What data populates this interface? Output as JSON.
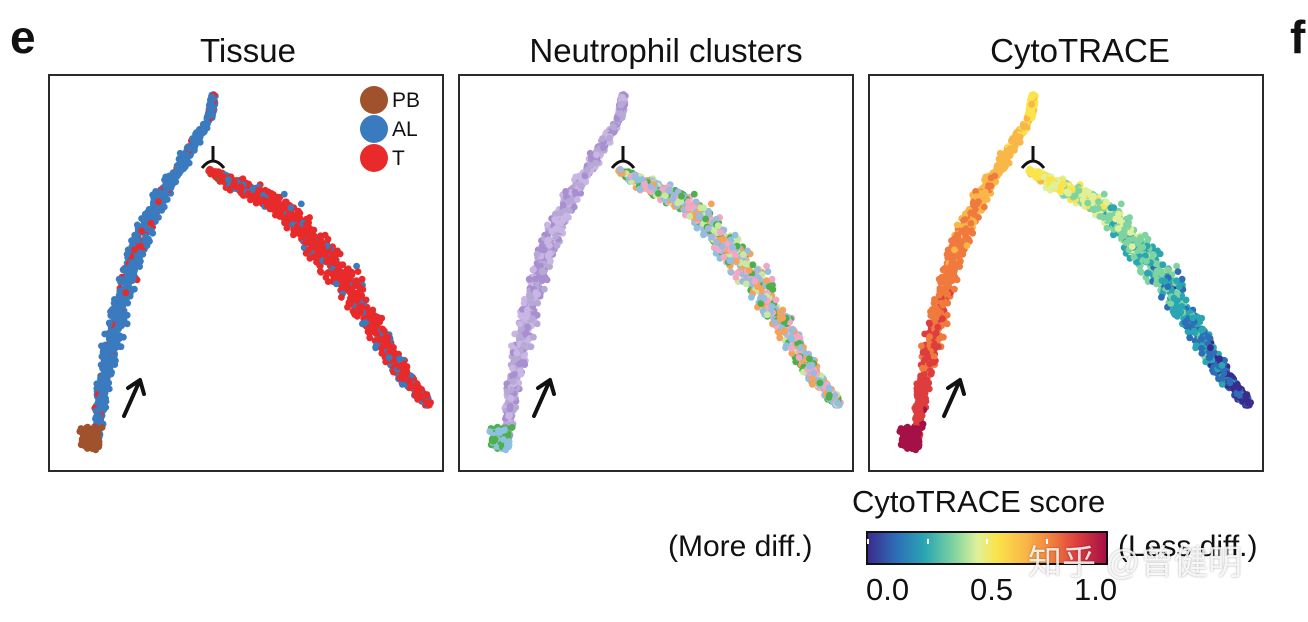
{
  "figure": {
    "panel_label_e": "e",
    "panel_label_f": "f"
  },
  "panels": [
    {
      "title": "Tissue"
    },
    {
      "title": "Neutrophil clusters"
    },
    {
      "title": "CytoTRACE"
    }
  ],
  "legend": {
    "items": [
      {
        "label": "PB",
        "color": "#a0522d"
      },
      {
        "label": "AL",
        "color": "#3a7bbf"
      },
      {
        "label": "T",
        "color": "#e82a2a"
      }
    ]
  },
  "colorbar": {
    "title": "CytoTRACE score",
    "left_label": "(More diff.)",
    "right_label": "(Less diff.)",
    "ticks": [
      "0.0",
      "0.5",
      "1.0"
    ]
  },
  "watermark": "知乎 @曾健明",
  "colors": {
    "pb": "#a0522d",
    "al": "#3a7bbf",
    "t": "#e82a2a"
  }
}
